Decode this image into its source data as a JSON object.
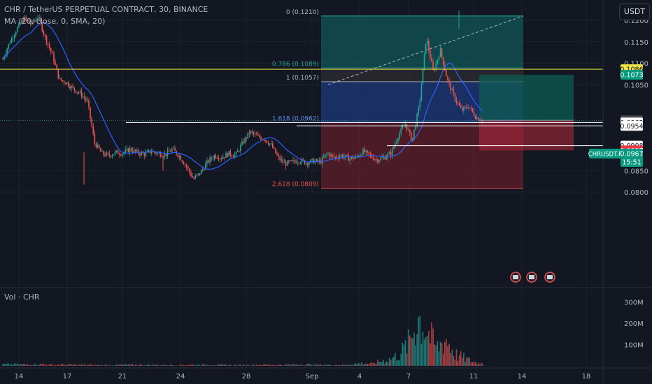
{
  "header": {
    "symbol_line": "CHR / TetherUS PERPETUAL CONTRACT, 30, BINANCE",
    "ma_line": "MA (20, close, 0, SMA, 20)",
    "currency_button": "USDT"
  },
  "volume_pane": {
    "label": "Vol · CHR",
    "axis_ticks": [
      "300M",
      "200M",
      "100M"
    ],
    "axis_values": [
      300,
      200,
      100
    ]
  },
  "colors": {
    "background": "#131722",
    "up": "#26a69a",
    "down": "#ef5350",
    "ma": "#2962ff",
    "yellow_line": "#f0e442",
    "fib_0": "#0f6b6b",
    "fib_0786": "#0f5c57",
    "fib_1": "#3b3b3b",
    "fib_1618": "#1f3c88",
    "fib_2618": "#7a1f2c",
    "long_tp": "#0d5c52",
    "long_sl": "#a8283a"
  },
  "chart_data": {
    "type": "candlestick",
    "title": "CHR / TetherUS PERPETUAL CONTRACT, 30, BINANCE",
    "y_axis": {
      "ticks": [
        "0.1200",
        "0.1150",
        "0.1100",
        "0.1050",
        "0.0850",
        "0.0800"
      ],
      "tick_values": [
        0.12,
        0.115,
        0.11,
        0.105,
        0.085,
        0.08
      ],
      "range": [
        0.0795,
        0.1228
      ]
    },
    "x_axis": {
      "ticks": [
        "14",
        "17",
        "21",
        "24",
        "28",
        "Sep",
        "4",
        "7",
        "11",
        "14",
        "18"
      ]
    },
    "price_path": [
      [
        0.111,
        0.115
      ],
      [
        0.115,
        0.118
      ],
      [
        0.118,
        0.1205
      ],
      [
        0.1205,
        0.1192
      ],
      [
        0.1192,
        0.1208
      ],
      [
        0.1208,
        0.116
      ],
      [
        0.116,
        0.112
      ],
      [
        0.112,
        0.1062
      ],
      [
        0.1062,
        0.1055
      ],
      [
        0.1055,
        0.104
      ],
      [
        0.104,
        0.103
      ],
      [
        0.103,
        0.101
      ],
      [
        0.101,
        0.0915
      ],
      [
        0.0915,
        0.089
      ],
      [
        0.089,
        0.0885
      ],
      [
        0.0885,
        0.0892
      ],
      [
        0.0892,
        0.089
      ],
      [
        0.089,
        0.09
      ],
      [
        0.09,
        0.0892
      ],
      [
        0.0892,
        0.0888
      ],
      [
        0.0888,
        0.0895
      ],
      [
        0.0895,
        0.089
      ],
      [
        0.089,
        0.0886
      ],
      [
        0.0886,
        0.09
      ],
      [
        0.09,
        0.0884
      ],
      [
        0.0884,
        0.086
      ],
      [
        0.086,
        0.083
      ],
      [
        0.083,
        0.0845
      ],
      [
        0.0845,
        0.087
      ],
      [
        0.087,
        0.0885
      ],
      [
        0.0885,
        0.088
      ],
      [
        0.088,
        0.089
      ],
      [
        0.089,
        0.0886
      ],
      [
        0.0886,
        0.0915
      ],
      [
        0.0915,
        0.094
      ],
      [
        0.094,
        0.093
      ],
      [
        0.093,
        0.0925
      ],
      [
        0.0925,
        0.091
      ],
      [
        0.091,
        0.088
      ],
      [
        0.088,
        0.0865
      ],
      [
        0.0865,
        0.087
      ],
      [
        0.087,
        0.0874
      ],
      [
        0.0874,
        0.0868
      ],
      [
        0.0868,
        0.0872
      ],
      [
        0.0872,
        0.087
      ],
      [
        0.087,
        0.089
      ],
      [
        0.089,
        0.088
      ],
      [
        0.088,
        0.0885
      ],
      [
        0.0885,
        0.0878
      ],
      [
        0.0878,
        0.088
      ],
      [
        0.088,
        0.0895
      ],
      [
        0.0895,
        0.0885
      ],
      [
        0.0885,
        0.0875
      ],
      [
        0.0875,
        0.088
      ],
      [
        0.088,
        0.089
      ],
      [
        0.089,
        0.093
      ],
      [
        0.093,
        0.096
      ],
      [
        0.096,
        0.092
      ],
      [
        0.092,
        0.1
      ],
      [
        0.1,
        0.116
      ],
      [
        0.116,
        0.108
      ],
      [
        0.108,
        0.113
      ],
      [
        0.113,
        0.106
      ],
      [
        0.106,
        0.102
      ],
      [
        0.102,
        0.099
      ],
      [
        0.099,
        0.1
      ],
      [
        0.1,
        0.0975
      ],
      [
        0.0975,
        0.0967
      ]
    ],
    "volume_path": [
      [
        15,
        8
      ],
      [
        5,
        6
      ],
      [
        6,
        5
      ],
      [
        6,
        7
      ],
      [
        9,
        5
      ],
      [
        11,
        4
      ],
      [
        12,
        4
      ],
      [
        13,
        6
      ],
      [
        16,
        5
      ],
      [
        19,
        4
      ],
      [
        20,
        5
      ],
      [
        21,
        6
      ],
      [
        24,
        5
      ],
      [
        25,
        4
      ],
      [
        29,
        6
      ],
      [
        30,
        5
      ],
      [
        33,
        8
      ],
      [
        34,
        6
      ],
      [
        37,
        5
      ],
      [
        39,
        14
      ],
      [
        40,
        10
      ],
      [
        41,
        25
      ],
      [
        42,
        35
      ],
      [
        43,
        60
      ],
      [
        44,
        120
      ],
      [
        45,
        250
      ],
      [
        46,
        180
      ],
      [
        47,
        90
      ],
      [
        48,
        140
      ],
      [
        49,
        60
      ],
      [
        50,
        40
      ],
      [
        51,
        20
      ],
      [
        52,
        12
      ]
    ],
    "fibonacci": [
      {
        "label": "0 (0.1210)",
        "level": 0.121
      },
      {
        "label": "0.786 (0.1089)",
        "level": 0.1089
      },
      {
        "label": "1 (0.1057)",
        "level": 0.1057
      },
      {
        "label": "1.618 (0.0962)",
        "level": 0.0962
      },
      {
        "label": "2.618 (0.0809)",
        "level": 0.0809
      }
    ],
    "horizontal_lines": [
      {
        "name": "yellow",
        "level": 0.1086
      },
      {
        "name": "white-1",
        "level": 0.0962
      },
      {
        "name": "white-2",
        "level": 0.0954
      },
      {
        "name": "white-3",
        "level": 0.0908
      }
    ],
    "position": {
      "type": "long",
      "entry": 0.0967,
      "take_profit": 0.1073,
      "stop_loss": 0.0897
    },
    "price_labels": [
      {
        "text": "0.1086",
        "value": 0.1086,
        "style": "yellow"
      },
      {
        "text": "0.1073",
        "value": 0.1073,
        "style": "green"
      },
      {
        "text": "0.0967",
        "value": 0.0967,
        "style": "gray"
      },
      {
        "text": "0.0962",
        "value": 0.0962,
        "style": "white"
      },
      {
        "text": "0.0954",
        "value": 0.0954,
        "style": "white"
      },
      {
        "text": "0.0908",
        "value": 0.0908,
        "style": "white"
      },
      {
        "text": "0.0897",
        "value": 0.0897,
        "style": "red"
      }
    ],
    "last_price_tag": {
      "symbol": "CHRUSDT.P",
      "price": "0.0967",
      "countdown": "15:51"
    }
  }
}
